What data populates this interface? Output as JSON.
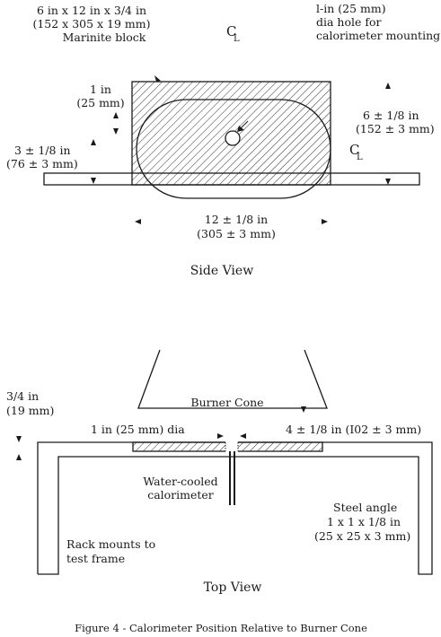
{
  "side_view": {
    "block_label": [
      "6 in x 12 in x 3/4 in",
      "(152 x 305 x 19 mm)",
      "Marinite block"
    ],
    "centerline_top": "C",
    "centerline_sub": "L",
    "hole_label": [
      "l-in (25 mm)",
      "dia hole for",
      "calorimeter mounting"
    ],
    "dim_1in": [
      "1 in",
      "(25 mm)"
    ],
    "dim_6in": [
      "6 ± 1/8 in",
      "(152 ± 3 mm)"
    ],
    "centerline_right": "C",
    "centerline_right_sub": "L",
    "dim_3in": [
      "3 ± 1/8 in",
      "(76 ± 3 mm)"
    ],
    "dim_12in": [
      "12 ± 1/8 in",
      "(305 ± 3 mm)"
    ],
    "title": "Side View"
  },
  "top_view": {
    "burner_cone": "Burner Cone",
    "dim_34in": [
      "3/4 in",
      "(19 mm)"
    ],
    "dim_1in_dia": "1 in (25 mm) dia",
    "dim_4in": "4 ± 1/8 in (I02 ± 3 mm)",
    "water_cooled": [
      "Water-cooled",
      "calorimeter"
    ],
    "steel_angle": [
      "Steel angle",
      "1 x 1 x 1/8 in",
      "(25 x 25 x 3 mm)"
    ],
    "rack_mounts": [
      "Rack mounts to",
      "test frame"
    ],
    "title": "Top View"
  },
  "caption": "Figure 4 -  Calorimeter Position Relative to Burner Cone"
}
